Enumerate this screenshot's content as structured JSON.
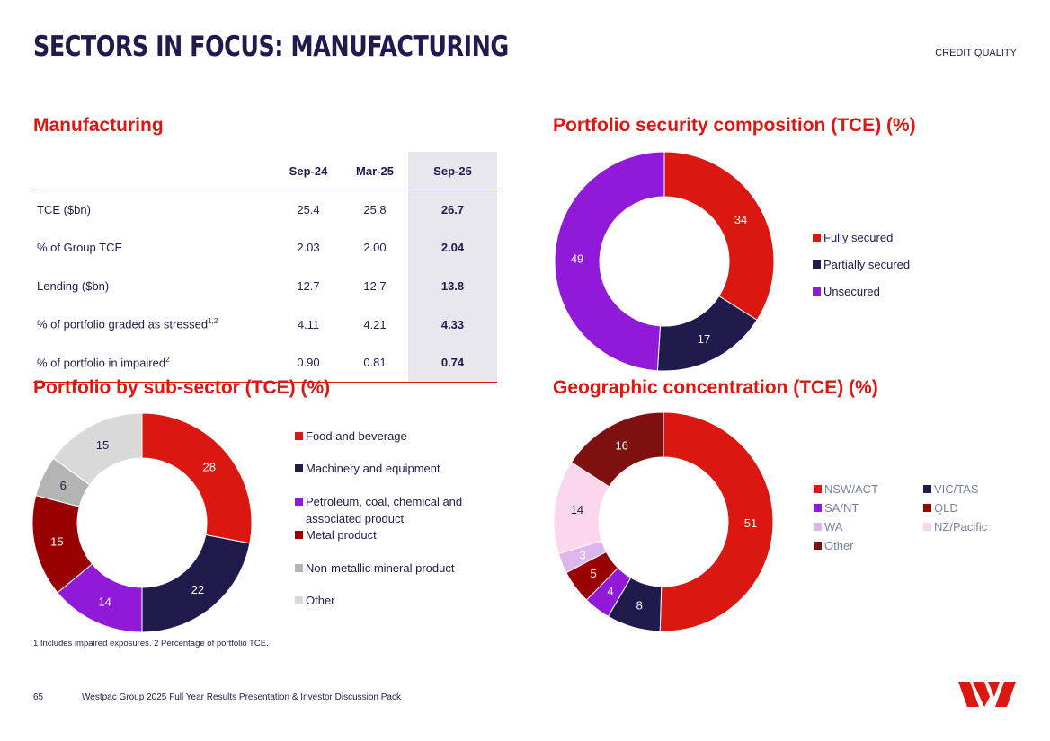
{
  "header": {
    "title": "SECTORS IN FOCUS: MANUFACTURING",
    "section_tag": "CREDIT QUALITY"
  },
  "manufacturing": {
    "heading": "Manufacturing",
    "columns": [
      "Sep-24",
      "Mar-25",
      "Sep-25"
    ],
    "rows": [
      {
        "label": "TCE ($bn)",
        "sup": "",
        "values": [
          "25.4",
          "25.8",
          "26.7"
        ]
      },
      {
        "label": "% of Group TCE",
        "sup": "",
        "values": [
          "2.03",
          "2.00",
          "2.04"
        ]
      },
      {
        "label": "Lending ($bn)",
        "sup": "",
        "values": [
          "12.7",
          "12.7",
          "13.8"
        ]
      },
      {
        "label": "% of portfolio graded as stressed",
        "sup": "1,2",
        "values": [
          "4.11",
          "4.21",
          "4.33"
        ]
      },
      {
        "label": "% of portfolio in impaired",
        "sup": "2",
        "values": [
          "0.90",
          "0.81",
          "0.74"
        ]
      }
    ]
  },
  "chart_data": [
    {
      "type": "pie",
      "id": "security",
      "title": "Portfolio security composition (TCE) (%)",
      "categories": [
        "Fully secured",
        "Partially secured",
        "Unsecured"
      ],
      "values": [
        34,
        17,
        49
      ],
      "colors": [
        "#da1710",
        "#1f1c4d",
        "#9119d8"
      ],
      "label_colors": [
        "#ffffff",
        "#ffffff",
        "#ffffff"
      ]
    },
    {
      "type": "pie",
      "id": "subsector",
      "title": "Portfolio by sub-sector (TCE) (%)",
      "categories": [
        "Food and beverage",
        "Machinery and equipment",
        "Petroleum, coal, chemical and associated product",
        "Metal product",
        "Non-metallic mineral product",
        "Other"
      ],
      "legend_lines": [
        [
          "Food and beverage"
        ],
        [
          "Machinery and equipment"
        ],
        [
          "Petroleum, coal, chemical and",
          "associated product"
        ],
        [
          "Metal product"
        ],
        [
          "Non-metallic mineral product"
        ],
        [
          "Other"
        ]
      ],
      "values": [
        28,
        22,
        14,
        15,
        6,
        15
      ],
      "colors": [
        "#da1710",
        "#1f1c4d",
        "#9119d8",
        "#990000",
        "#b4b4b4",
        "#d9d9d9"
      ],
      "label_colors": [
        "#ffffff",
        "#ffffff",
        "#ffffff",
        "#ffffff",
        "#1f1c4d",
        "#1f1c4d"
      ]
    },
    {
      "type": "pie",
      "id": "geo",
      "title": "Geographic concentration (TCE) (%)",
      "categories": [
        "NSW/ACT",
        "VIC/TAS",
        "SA/NT",
        "QLD",
        "WA",
        "NZ/Pacific",
        "Other"
      ],
      "values": [
        51,
        8,
        4,
        5,
        3,
        14,
        16
      ],
      "colors": [
        "#da1710",
        "#1f1c4d",
        "#9119d8",
        "#990000",
        "#dcb6ec",
        "#fbd6ec",
        "#7f1010"
      ],
      "label_colors": [
        "#ffffff",
        "#ffffff",
        "#ffffff",
        "#ffffff",
        "#ffffff",
        "#1f1c4d",
        "#ffffff"
      ]
    }
  ],
  "footnote": "1 Includes impaired exposures. 2 Percentage of portfolio TCE.",
  "footer": {
    "page_number": "65",
    "source": "Westpac Group 2025 Full Year Results Presentation & Investor Discussion Pack"
  },
  "brand": {
    "accent": "#da1710",
    "navy": "#1f1c4d"
  }
}
